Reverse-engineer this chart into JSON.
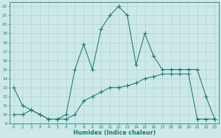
{
  "line1_x": [
    0,
    1,
    2,
    3,
    4,
    5,
    6,
    7,
    8,
    9,
    10,
    11,
    12,
    13,
    14,
    15,
    16,
    17,
    18,
    19,
    20,
    21,
    22,
    23
  ],
  "line1_y": [
    13,
    11,
    10.5,
    10,
    9.5,
    9.5,
    10,
    15,
    17.8,
    15,
    19.5,
    21,
    22,
    21,
    15.5,
    19,
    16.5,
    15,
    15,
    15,
    15,
    15,
    12,
    9.5
  ],
  "line2_x": [
    0,
    1,
    2,
    3,
    4,
    5,
    6,
    7,
    8,
    9,
    10,
    11,
    12,
    13,
    14,
    15,
    16,
    17,
    18,
    19,
    20,
    21,
    22,
    23
  ],
  "line2_y": [
    10,
    10,
    10.5,
    10,
    9.5,
    9.5,
    9.5,
    10,
    11.5,
    12,
    12.5,
    13,
    13,
    13.2,
    13.5,
    14,
    14.2,
    14.5,
    14.5,
    14.5,
    14.5,
    9.5,
    9.5,
    9.5
  ],
  "line_color": "#1a7a6e",
  "bg_color": "#cde8e8",
  "grid_color": "#a8cccc",
  "xlabel": "Humidex (Indice chaleur)",
  "xlim": [
    -0.5,
    23.5
  ],
  "ylim": [
    9,
    22.5
  ],
  "yticks": [
    9,
    10,
    11,
    12,
    13,
    14,
    15,
    16,
    17,
    18,
    19,
    20,
    21,
    22
  ],
  "xticks": [
    0,
    1,
    2,
    3,
    4,
    5,
    6,
    7,
    8,
    9,
    10,
    11,
    12,
    13,
    14,
    15,
    16,
    17,
    18,
    19,
    20,
    21,
    22,
    23
  ],
  "marker": "+",
  "markersize": 4,
  "tick_fontsize": 4.5,
  "xlabel_fontsize": 6.0
}
